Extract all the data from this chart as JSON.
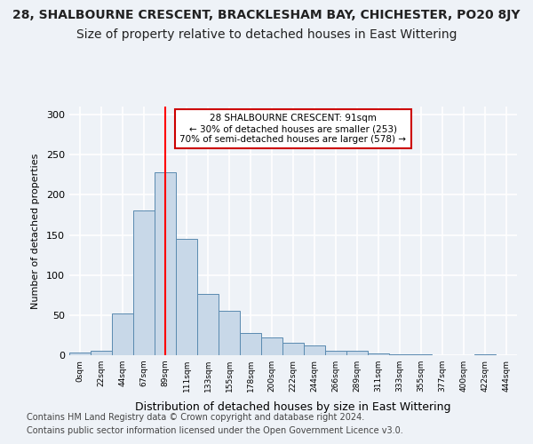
{
  "title1": "28, SHALBOURNE CRESCENT, BRACKLESHAM BAY, CHICHESTER, PO20 8JY",
  "title2": "Size of property relative to detached houses in East Wittering",
  "xlabel": "Distribution of detached houses by size in East Wittering",
  "ylabel": "Number of detached properties",
  "bin_labels": [
    "0sqm",
    "22sqm",
    "44sqm",
    "67sqm",
    "89sqm",
    "111sqm",
    "133sqm",
    "155sqm",
    "178sqm",
    "200sqm",
    "222sqm",
    "244sqm",
    "266sqm",
    "289sqm",
    "311sqm",
    "333sqm",
    "355sqm",
    "377sqm",
    "400sqm",
    "422sqm",
    "444sqm"
  ],
  "bar_values": [
    3,
    6,
    52,
    181,
    228,
    145,
    76,
    55,
    28,
    22,
    15,
    12,
    5,
    6,
    2,
    1,
    1,
    0,
    0,
    1,
    0
  ],
  "bar_color": "#c8d8e8",
  "bar_edge_color": "#5a8ab0",
  "vline_x": 4,
  "annotation_text": "28 SHALBOURNE CRESCENT: 91sqm\n← 30% of detached houses are smaller (253)\n70% of semi-detached houses are larger (578) →",
  "annotation_box_color": "#ffffff",
  "annotation_box_edge_color": "#cc0000",
  "ylim": [
    0,
    310
  ],
  "yticks": [
    0,
    50,
    100,
    150,
    200,
    250,
    300
  ],
  "footer1": "Contains HM Land Registry data © Crown copyright and database right 2024.",
  "footer2": "Contains public sector information licensed under the Open Government Licence v3.0.",
  "bg_color": "#eef2f7",
  "grid_color": "#ffffff",
  "title1_fontsize": 10,
  "title2_fontsize": 10,
  "footer_fontsize": 7
}
